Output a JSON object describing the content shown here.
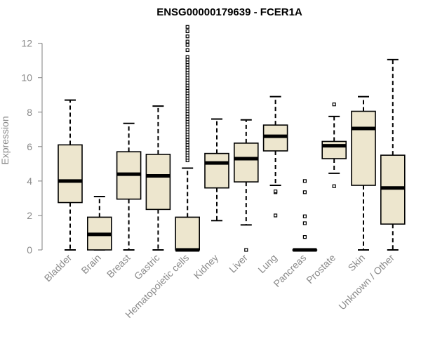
{
  "chart_data": {
    "type": "boxplot",
    "title": "ENSG00000179639 - FCER1A",
    "xlabel": "",
    "ylabel": "Expression",
    "ylim": [
      0,
      12.8
    ],
    "yticks": [
      "0",
      "2",
      "4",
      "6",
      "8",
      "10",
      "12"
    ],
    "categories": [
      "Bladder",
      "Brain",
      "Breast",
      "Gastric",
      "Hematopoietic cells",
      "Kidney",
      "Liver",
      "Lung",
      "Pancreas",
      "Prostate",
      "Skin",
      "Unknown / Other"
    ],
    "boxes": [
      {
        "min": 0.0,
        "q1": 2.75,
        "median": 4.0,
        "q3": 6.1,
        "max": 8.7,
        "outliers": []
      },
      {
        "min": 0.0,
        "q1": 0.0,
        "median": 0.9,
        "q3": 1.9,
        "max": 3.1,
        "outliers": []
      },
      {
        "min": 0.0,
        "q1": 2.95,
        "median": 4.4,
        "q3": 5.7,
        "max": 7.35,
        "outliers": []
      },
      {
        "min": 0.0,
        "q1": 2.35,
        "median": 4.3,
        "q3": 5.55,
        "max": 8.35,
        "outliers": []
      },
      {
        "min": 0.0,
        "q1": 0.0,
        "median": 0.0,
        "q3": 1.9,
        "max": 4.75,
        "outliers": [
          5.2,
          5.35,
          5.5,
          5.65,
          5.8,
          5.95,
          6.1,
          6.25,
          6.4,
          6.55,
          6.7,
          6.85,
          7.0,
          7.15,
          7.3,
          7.45,
          7.6,
          7.75,
          7.9,
          8.05,
          8.2,
          8.35,
          8.5,
          8.65,
          8.8,
          8.95,
          9.1,
          9.25,
          9.4,
          9.55,
          9.7,
          9.85,
          10.0,
          10.15,
          10.3,
          10.45,
          10.6,
          10.75,
          10.9,
          11.05,
          11.2,
          11.6,
          11.9,
          12.1,
          12.4,
          12.7,
          12.95
        ]
      },
      {
        "min": 1.7,
        "q1": 3.6,
        "median": 5.05,
        "q3": 5.6,
        "max": 7.6,
        "outliers": []
      },
      {
        "min": 1.45,
        "q1": 3.95,
        "median": 5.3,
        "q3": 6.2,
        "max": 7.55,
        "outliers": [
          0.0
        ]
      },
      {
        "min": 3.75,
        "q1": 5.75,
        "median": 6.6,
        "q3": 7.25,
        "max": 8.9,
        "outliers": [
          3.35,
          3.4,
          2.0
        ]
      },
      {
        "min": 0.0,
        "q1": 0.0,
        "median": 0.0,
        "q3": 0.0,
        "max": 0.0,
        "outliers": [
          0.75,
          1.55,
          1.95,
          3.35,
          4.0
        ]
      },
      {
        "min": 4.45,
        "q1": 5.3,
        "median": 6.05,
        "q3": 6.3,
        "max": 7.75,
        "outliers": [
          3.7,
          8.45
        ]
      },
      {
        "min": 0.0,
        "q1": 3.75,
        "median": 7.05,
        "q3": 8.05,
        "max": 8.9,
        "outliers": []
      },
      {
        "min": 0.0,
        "q1": 1.5,
        "median": 3.6,
        "q3": 5.5,
        "max": 11.05,
        "outliers": []
      }
    ],
    "colors": {
      "box_fill": "#ede6ce",
      "box_stroke": "#000000",
      "axis": "#7f7f7f",
      "tick_text": "#8a8a8a",
      "title": "#000000"
    }
  }
}
